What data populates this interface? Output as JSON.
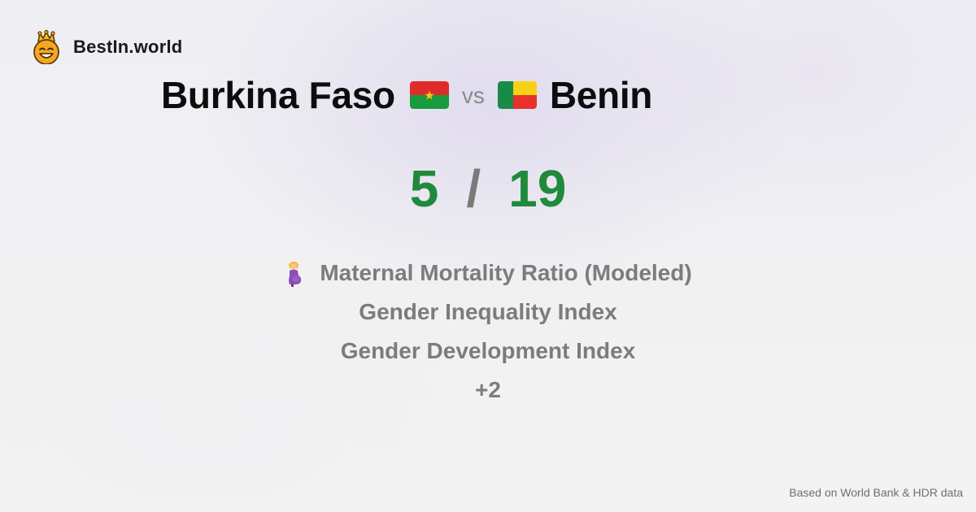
{
  "brand": {
    "name": "BestIn.world",
    "icon": "crowned-smiley-icon"
  },
  "comparison": {
    "left": {
      "name": "Burkina Faso",
      "flag": "burkina-faso-flag-icon",
      "score": "5"
    },
    "vs_label": "vs",
    "right": {
      "name": "Benin",
      "flag": "benin-flag-icon",
      "score": "19"
    },
    "score_separator": "/"
  },
  "metrics": {
    "items": [
      {
        "label": "Maternal Mortality Ratio (Modeled)",
        "icon": "pregnant-woman-icon"
      },
      {
        "label": "Gender Inequality Index"
      },
      {
        "label": "Gender Development Index"
      },
      {
        "label": "+2"
      }
    ]
  },
  "footer": {
    "source": "Based on World Bank & HDR data"
  },
  "colors": {
    "score": "#1f8a3c",
    "muted": "#7c7c7c",
    "burkina_red": "#e02b2b",
    "burkina_green": "#1a9a3e",
    "burkina_star": "#f2c318",
    "benin_green": "#1a8a47",
    "benin_yellow": "#f7d117",
    "benin_red": "#e8302f"
  }
}
